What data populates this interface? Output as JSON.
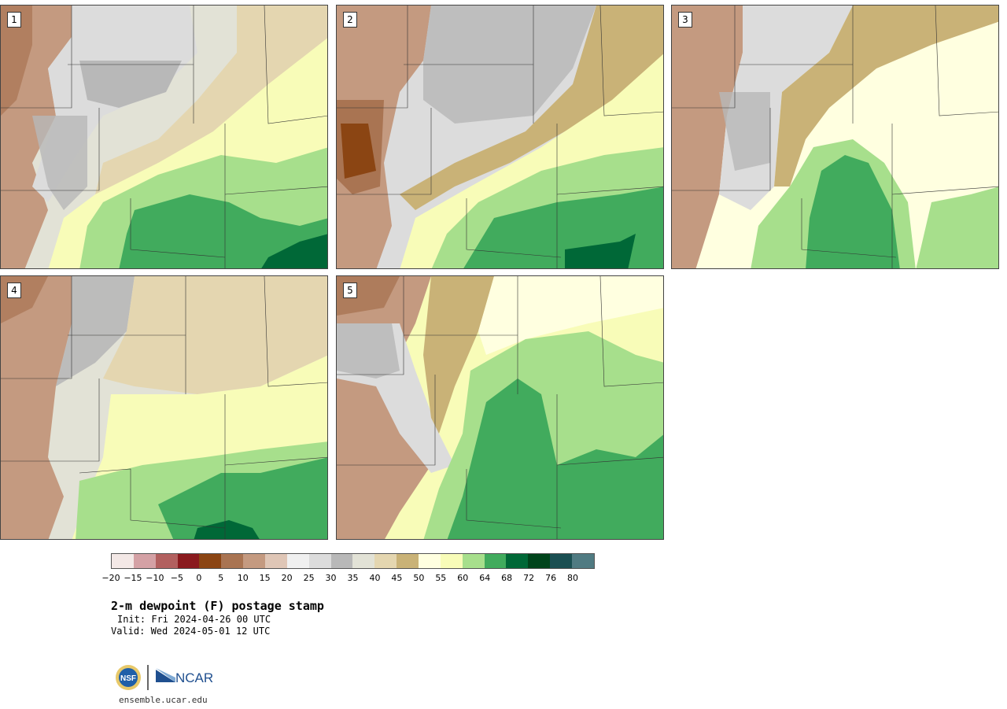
{
  "panels": [
    {
      "label": "1"
    },
    {
      "label": "2"
    },
    {
      "label": "3"
    },
    {
      "label": "4"
    },
    {
      "label": "5"
    }
  ],
  "colorbar": {
    "colors": [
      "#f3e8e6",
      "#d4a1a5",
      "#b2605f",
      "#8a1a1e",
      "#8b4513",
      "#a97452",
      "#c49a80",
      "#dfc6b6",
      "#f0f0f0",
      "#dcdcdc",
      "#b8b8b8",
      "#e2e2d6",
      "#e4d6b0",
      "#c9b277",
      "#ffffe0",
      "#f8fcb8",
      "#a7df8c",
      "#41ab5d",
      "#006837",
      "#00441b",
      "#1a4f52",
      "#507b82"
    ],
    "tick_labels": [
      "−20",
      "−15",
      "−10",
      "−5",
      "0",
      "5",
      "10",
      "15",
      "20",
      "25",
      "30",
      "35",
      "40",
      "45",
      "50",
      "55",
      "60",
      "64",
      "68",
      "72",
      "76",
      "80"
    ]
  },
  "info": {
    "title": "2-m dewpoint (F) postage stamp",
    "init": "Init: Fri 2024-04-26 00 UTC",
    "valid": "Valid: Wed 2024-05-01 12 UTC"
  },
  "logos": {
    "nsf_text": "NSF",
    "ncar_text": "NCAR",
    "site": "ensemble.ucar.edu"
  },
  "colors": {
    "moist": "#41ab5d",
    "very_moist": "#006837",
    "mid_moist": "#a7df8c",
    "humid": "#f8fcb8",
    "tan": "#c9b277",
    "beige": "#e4d6b0",
    "gray": "#b8b8b8",
    "light_gray": "#dcdcdc",
    "dry_brown": "#c49a80"
  }
}
